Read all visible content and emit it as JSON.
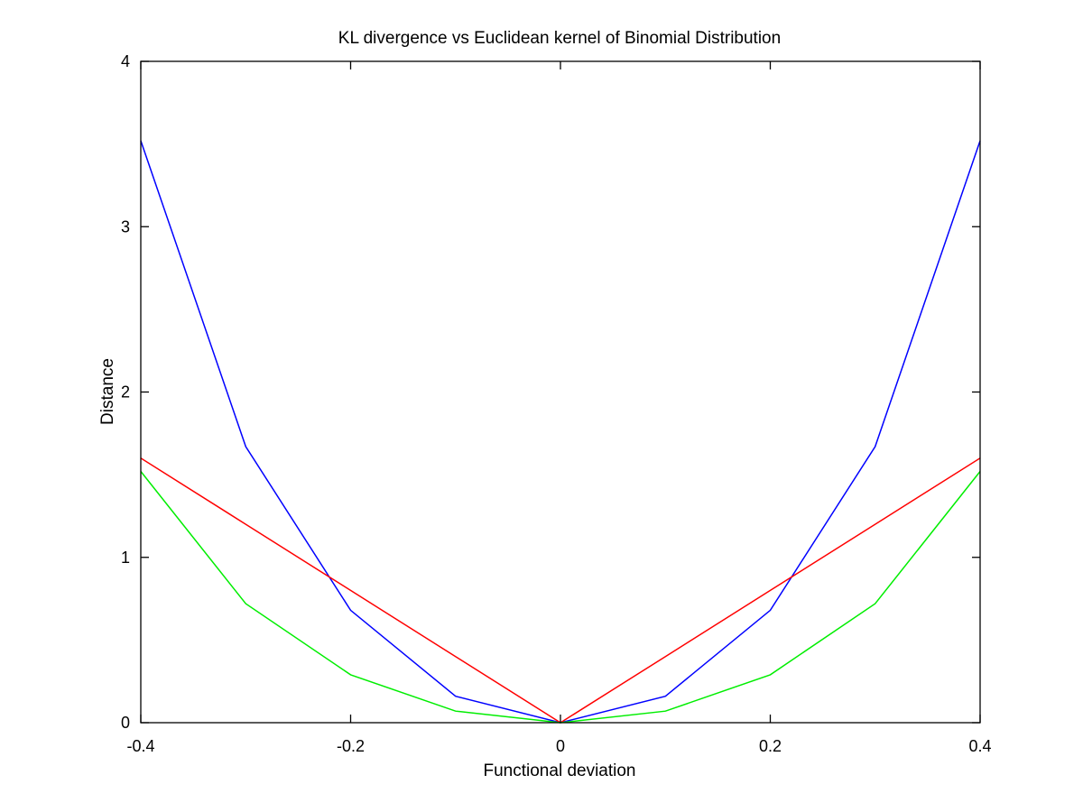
{
  "chart_data": {
    "type": "line",
    "title": "KL divergence vs Euclidean kernel of Binomial Distribution",
    "xlabel": "Functional deviation",
    "ylabel": "Distance",
    "xlim": [
      -0.4,
      0.4
    ],
    "ylim": [
      0,
      4
    ],
    "xticks": [
      -0.4,
      -0.2,
      0,
      0.2,
      0.4
    ],
    "xtick_labels": [
      "-0.4",
      "-0.2",
      "0",
      "0.2",
      "0.4"
    ],
    "yticks": [
      0,
      1,
      2,
      3,
      4
    ],
    "ytick_labels": [
      "0",
      "1",
      "2",
      "3",
      "4"
    ],
    "grid": false,
    "x": [
      -0.4,
      -0.3,
      -0.2,
      -0.1,
      0,
      0.1,
      0.2,
      0.3,
      0.4
    ],
    "series": [
      {
        "color": "#0000ff",
        "values": [
          3.52,
          1.67,
          0.68,
          0.16,
          0,
          0.16,
          0.68,
          1.67,
          3.52
        ]
      },
      {
        "color": "#ff0000",
        "values": [
          1.6,
          1.2,
          0.8,
          0.4,
          0,
          0.4,
          0.8,
          1.2,
          1.6
        ]
      },
      {
        "color": "#00ee00",
        "values": [
          1.52,
          0.72,
          0.29,
          0.07,
          0,
          0.07,
          0.29,
          0.72,
          1.52
        ]
      }
    ]
  }
}
